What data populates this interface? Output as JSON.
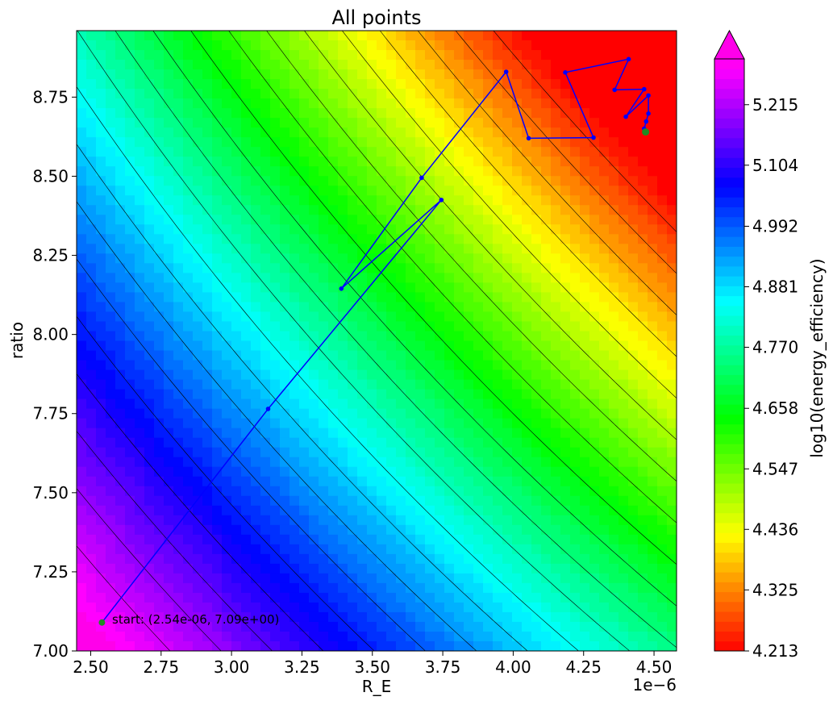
{
  "chart_data": {
    "type": "contour",
    "title": "All points",
    "xlabel": "R_E",
    "ylabel": "ratio",
    "x_offset_label": "1e−6",
    "xlim": [
      2.45e-06,
      4.58e-06
    ],
    "ylim": [
      7.0,
      8.96
    ],
    "x_ticks": [
      2.5e-06,
      2.75e-06,
      3e-06,
      3.25e-06,
      3.5e-06,
      3.75e-06,
      4e-06,
      4.25e-06,
      4.5e-06
    ],
    "x_tick_labels": [
      "2.50",
      "2.75",
      "3.00",
      "3.25",
      "3.50",
      "3.75",
      "4.00",
      "4.25",
      "4.50"
    ],
    "y_ticks": [
      7.0,
      7.25,
      7.5,
      7.75,
      8.0,
      8.25,
      8.5,
      8.75
    ],
    "y_tick_labels": [
      "7.00",
      "7.25",
      "7.50",
      "7.75",
      "8.00",
      "8.25",
      "8.50",
      "8.75"
    ],
    "colorbar": {
      "label": "log10(energy_efficiency)",
      "colormap": "gist_rainbow",
      "min": 4.213,
      "max": 5.299,
      "extend": "max",
      "ticks": [
        4.213,
        4.325,
        4.436,
        4.547,
        4.658,
        4.77,
        4.881,
        4.992,
        5.104,
        5.215
      ],
      "tick_labels": [
        "4.213",
        "4.325",
        "4.436",
        "4.547",
        "4.658",
        "4.770",
        "4.881",
        "4.992",
        "5.104",
        "5.215"
      ]
    },
    "path": {
      "color": "#0000ff",
      "points": [
        {
          "x": 2.54e-06,
          "y": 7.09
        },
        {
          "x": 3.13e-06,
          "y": 7.765
        },
        {
          "x": 3.745e-06,
          "y": 8.425
        },
        {
          "x": 3.39e-06,
          "y": 8.145
        },
        {
          "x": 3.675e-06,
          "y": 8.495
        },
        {
          "x": 3.975e-06,
          "y": 8.83
        },
        {
          "x": 4.055e-06,
          "y": 8.62
        },
        {
          "x": 4.285e-06,
          "y": 8.622
        },
        {
          "x": 4.185e-06,
          "y": 8.828
        },
        {
          "x": 4.41e-06,
          "y": 8.87
        },
        {
          "x": 4.36e-06,
          "y": 8.773
        },
        {
          "x": 4.465e-06,
          "y": 8.775
        },
        {
          "x": 4.4e-06,
          "y": 8.688
        },
        {
          "x": 4.48e-06,
          "y": 8.755
        },
        {
          "x": 4.48e-06,
          "y": 8.698
        },
        {
          "x": 4.472e-06,
          "y": 8.673
        },
        {
          "x": 4.465e-06,
          "y": 8.65
        },
        {
          "x": 4.47e-06,
          "y": 8.64
        }
      ],
      "start_point": {
        "x": 2.54e-06,
        "y": 7.09,
        "color": "#228b22"
      },
      "end_point": {
        "x": 4.47e-06,
        "y": 8.64,
        "color": "#228b22"
      }
    },
    "annotation": "start: (2.54e-06, 7.09e+00)"
  }
}
